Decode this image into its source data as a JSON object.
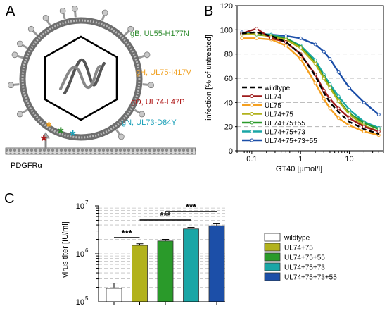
{
  "panels": {
    "a": "A",
    "b": "B",
    "c": "C"
  },
  "colors": {
    "gB": "#2e8b2e",
    "gH": "#f0a020",
    "gO": "#b01818",
    "gN": "#1aa0b8",
    "wildtype": "#000000",
    "UL74": "#9e1b1b",
    "UL75": "#f5a020",
    "UL74+75": "#b2b21c",
    "UL74+75+55": "#2a9a2a",
    "UL74+75+73": "#1aa6a6",
    "UL74+75+73+55": "#1c4fa8"
  },
  "panel_a": {
    "labels": [
      {
        "key": "gB",
        "text": "gB, UL55-H177N"
      },
      {
        "key": "gH",
        "text": "gH, UL75-I417V"
      },
      {
        "key": "gO",
        "text": "gO, UL74-L47P"
      },
      {
        "key": "gN",
        "text": "gN, UL73-D84Y"
      }
    ],
    "receptor_label": "PDGFRα",
    "icons": [
      "virion-envelope-icon",
      "capsid-icon",
      "dna-helix-icon",
      "glycoprotein-spike-icon",
      "receptor-icon",
      "asterisk-icon"
    ]
  },
  "chart_data": [
    {
      "type": "line",
      "panel": "B",
      "xlabel": "GT40 [µmol/l]",
      "ylabel": "infection [% of untreated]",
      "xscale": "log",
      "xlim": [
        0.05,
        50
      ],
      "ylim": [
        0,
        120
      ],
      "yticks": [
        0,
        20,
        40,
        60,
        80,
        100,
        120
      ],
      "xticks": [
        0.1,
        1,
        10
      ],
      "xtick_labels": [
        "0.1",
        "1",
        "10"
      ],
      "grid": "horizontal dashed",
      "legend": "bottom-left",
      "x": [
        0.0625,
        0.125,
        0.25,
        0.5,
        1,
        2,
        3,
        4,
        6,
        10,
        20,
        40
      ],
      "series": [
        {
          "name": "wildtype",
          "style": "dashed",
          "values": [
            97,
            98,
            95,
            90,
            80,
            62,
            48,
            40,
            32,
            24,
            18,
            14
          ]
        },
        {
          "name": "UL74",
          "values": [
            97,
            101,
            93,
            90,
            80,
            63,
            50,
            43,
            35,
            27,
            20,
            16
          ]
        },
        {
          "name": "UL75",
          "values": [
            93,
            93,
            92,
            87,
            76,
            56,
            43,
            35,
            27,
            21,
            16,
            13
          ]
        },
        {
          "name": "UL74+75",
          "values": [
            96,
            97,
            94,
            92,
            85,
            72,
            60,
            52,
            41,
            30,
            21,
            16
          ]
        },
        {
          "name": "UL74+75+55",
          "values": [
            97,
            96,
            95,
            93,
            86,
            73,
            61,
            53,
            42,
            31,
            23,
            18
          ]
        },
        {
          "name": "UL74+75+73",
          "values": [
            97,
            97,
            96,
            93,
            87,
            75,
            63,
            55,
            45,
            34,
            24,
            19
          ]
        },
        {
          "name": "UL74+75+73+55",
          "values": [
            98,
            97,
            96,
            95,
            93,
            88,
            82,
            76,
            65,
            52,
            40,
            30
          ]
        }
      ]
    },
    {
      "type": "bar",
      "panel": "C",
      "ylabel": "virus titer [IU/ml]",
      "yscale": "log",
      "ylim": [
        100000,
        10000000
      ],
      "ytick_labels": [
        {
          "base": "10",
          "exp": "5",
          "value": 100000
        },
        {
          "base": "10",
          "exp": "6",
          "value": 1000000
        },
        {
          "base": "10",
          "exp": "7",
          "value": 10000000
        }
      ],
      "grid": "horizontal dashed",
      "legend": "right",
      "categories": [
        "wildtype",
        "UL74+75",
        "UL74+75+55",
        "UL74+75+73",
        "UL74+75+73+55"
      ],
      "values": [
        190000,
        1500000,
        1850000,
        3300000,
        3850000
      ],
      "errors": [
        55000,
        120000,
        150000,
        250000,
        380000
      ],
      "significance": [
        {
          "from": "wildtype",
          "to": "UL74+75",
          "label": "***"
        },
        {
          "from": "UL74+75",
          "to": "UL74+75+73",
          "label": "***"
        },
        {
          "from": "UL74+75+55",
          "to": "UL74+75+73+55",
          "label": "***"
        }
      ]
    }
  ]
}
